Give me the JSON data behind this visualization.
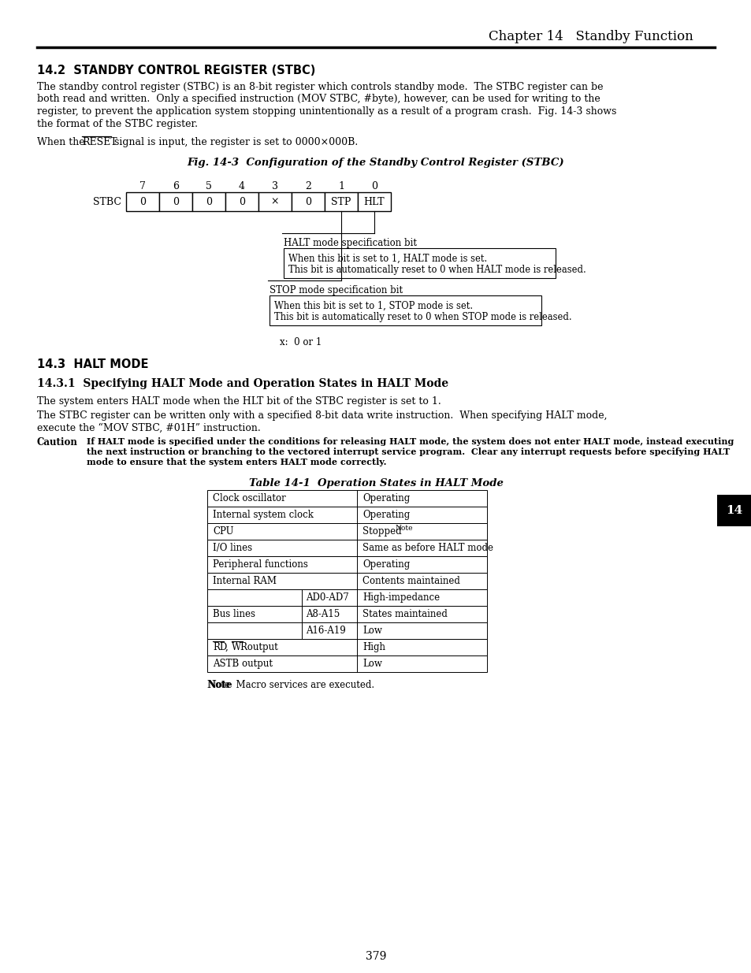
{
  "page_title": "Chapter 14   Standby Function",
  "section_title": "14.2  STANDBY CONTROL REGISTER (STBC)",
  "body_text1_lines": [
    "The standby control register (STBC) is an 8-bit register which controls standby mode.  The STBC register can be",
    "both read and written.  Only a specified instruction (MOV STBC, #byte), however, can be used for writing to the",
    "register, to prevent the application system stopping unintentionally as a result of a program crash.  Fig. 14-3 shows",
    "the format of the STBC register."
  ],
  "fig_title": "Fig. 14-3  Configuration of the Standby Control Register (STBC)",
  "reg_bits": [
    "0",
    "0",
    "0",
    "0",
    "×",
    "0",
    "STP",
    "HLT"
  ],
  "reg_label": "STBC",
  "bit_numbers": [
    "7",
    "6",
    "5",
    "4",
    "3",
    "2",
    "1",
    "0"
  ],
  "halt_label": "HALT mode specification bit",
  "halt_box_line1": "When this bit is set to 1, HALT mode is set.",
  "halt_box_line2": "This bit is automatically reset to 0 when HALT mode is released.",
  "stop_label": "STOP mode specification bit",
  "stop_box_line1": "When this bit is set to 1, STOP mode is set.",
  "stop_box_line2": "This bit is automatically reset to 0 when STOP mode is released.",
  "x_note": "x:  0 or 1",
  "section2_title": "14.3  HALT MODE",
  "section3_title": "14.3.1  Specifying HALT Mode and Operation States in HALT Mode",
  "body_text2": "The system enters HALT mode when the HLT bit of the STBC register is set to 1.",
  "body_text3_lines": [
    "The STBC register can be written only with a specified 8-bit data write instruction.  When specifying HALT mode,",
    "execute the “MOV STBC, #01H” instruction."
  ],
  "caution_label": "Caution",
  "caution_lines": [
    "If HALT mode is specified under the conditions for releasing HALT mode, the system does not enter HALT mode, instead executing",
    "the next instruction or branching to the vectored interrupt service program.  Clear any interrupt requests before specifying HALT",
    "mode to ensure that the system enters HALT mode correctly."
  ],
  "table_title": "Table 14-1  Operation States in HALT Mode",
  "table_rows": [
    [
      "Clock oscillator",
      "",
      "Operating"
    ],
    [
      "Internal system clock",
      "",
      "Operating"
    ],
    [
      "CPU",
      "",
      "Stopped"
    ],
    [
      "I/O lines",
      "",
      "Same as before HALT mode"
    ],
    [
      "Peripheral functions",
      "",
      "Operating"
    ],
    [
      "Internal RAM",
      "",
      "Contents maintained"
    ],
    [
      "Bus lines",
      "AD0-AD7",
      "High-impedance"
    ],
    [
      "Bus lines",
      "A8-A15",
      "States maintained"
    ],
    [
      "Bus lines",
      "A16-A19",
      "Low"
    ],
    [
      "RD, WR output",
      "",
      "High"
    ],
    [
      "ASTB output",
      "",
      "Low"
    ]
  ],
  "note_text": "Note  Macro services are executed.",
  "page_number": "379",
  "tab_label": "14"
}
